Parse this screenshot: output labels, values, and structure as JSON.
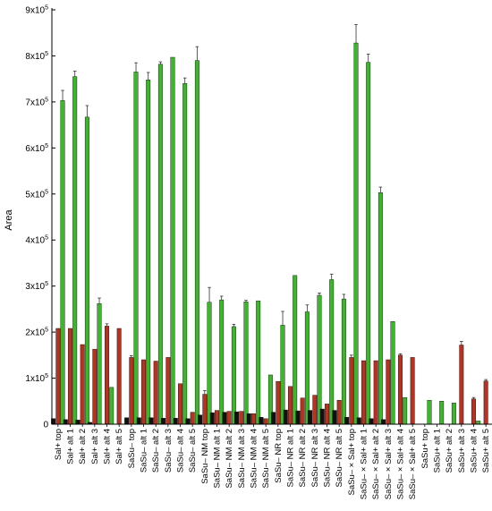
{
  "chart_data": {
    "type": "bar",
    "ylabel": "Area",
    "ylim": [
      0,
      900000
    ],
    "y_ticks": [
      {
        "value": 0,
        "label": "0"
      },
      {
        "value": 100000,
        "label": "1x10",
        "exp": "5"
      },
      {
        "value": 200000,
        "label": "2x10",
        "exp": "5"
      },
      {
        "value": 300000,
        "label": "3x10",
        "exp": "5"
      },
      {
        "value": 400000,
        "label": "4x10",
        "exp": "5"
      },
      {
        "value": 500000,
        "label": "5x10",
        "exp": "5"
      },
      {
        "value": 600000,
        "label": "6x10",
        "exp": "5"
      },
      {
        "value": 700000,
        "label": "7x10",
        "exp": "5"
      },
      {
        "value": 800000,
        "label": "8x10",
        "exp": "5"
      },
      {
        "value": 900000,
        "label": "9x10",
        "exp": "5"
      }
    ],
    "categories": [
      "Sal+ top",
      "Sal+ alt 1",
      "Sal+ alt 2",
      "Sal+ alt 3",
      "Sal+ alt 4",
      "Sal+ alt 5",
      "SaSu– top",
      "SaSu– alt 1",
      "SaSu– alt 2",
      "SaSu– alt 3",
      "SaSu– alt 4",
      "SaSu– alt 5",
      "SaSu– NM top",
      "SaSu– NM alt 1",
      "SaSu– NM alt 2",
      "SaSu– NM alt 3",
      "SaSu– NM alt 4",
      "SaSu– NM alt 5",
      "SaSu– NR top",
      "SaSu– NR alt 1",
      "SaSu– NR alt 2",
      "SaSu– NR alt 3",
      "SaSu– NR alt 4",
      "SaSu– NR alt 5",
      "SaSu– × Sal+ top",
      "SaSu– × Sal+ alt 1",
      "SaSu– × Sal+ alt 2",
      "SaSu– × Sal+ alt 3",
      "SaSu– × Sal+ alt 4",
      "SaSu– × Sal+ alt 5",
      "SaSu+ top",
      "SaSu+ alt 1",
      "SaSu+ alt 2",
      "SaSu+ alt 3",
      "SaSu+ alt 4",
      "SaSu+ alt 5"
    ],
    "series": [
      {
        "color": "#111111",
        "values": [
          12000,
          10000,
          9000,
          4000,
          0,
          0,
          14000,
          14000,
          14000,
          13000,
          13000,
          12000,
          20000,
          25000,
          26000,
          27000,
          23000,
          15000,
          26000,
          31000,
          29000,
          30000,
          33000,
          30000,
          15000,
          14000,
          12000,
          10000,
          0,
          0,
          0,
          0,
          0,
          0,
          0,
          0
        ]
      },
      {
        "color": "#b83222",
        "values": [
          208000,
          208000,
          173000,
          163000,
          213000,
          208000,
          145000,
          140000,
          137000,
          145000,
          88000,
          26000,
          65000,
          30000,
          28000,
          28000,
          23000,
          12000,
          93000,
          82000,
          57000,
          63000,
          44000,
          52000,
          145000,
          138000,
          138000,
          140000,
          150000,
          145000,
          0,
          0,
          0,
          172000,
          55000,
          94000
        ]
      },
      {
        "color": "#3cb62b",
        "values": [
          703000,
          755000,
          667000,
          262000,
          80000,
          0,
          765000,
          748000,
          782000,
          797000,
          740000,
          790000,
          265000,
          270000,
          212000,
          266000,
          268000,
          107000,
          215000,
          323000,
          244000,
          280000,
          314000,
          272000,
          828000,
          786000,
          503000,
          223000,
          58000,
          0,
          52000,
          50000,
          46000,
          0,
          7000,
          0
        ]
      }
    ],
    "error_bars": [
      [
        0,
        0,
        0,
        0,
        0,
        0,
        0,
        0,
        0,
        0,
        0,
        0,
        0,
        0,
        0,
        0,
        0,
        0,
        0,
        0,
        0,
        0,
        0,
        0,
        0,
        0,
        0,
        0,
        0,
        0,
        0,
        0,
        0,
        0,
        0,
        0
      ],
      [
        0,
        0,
        0,
        0,
        5000,
        0,
        4000,
        0,
        0,
        0,
        0,
        0,
        8000,
        0,
        0,
        0,
        0,
        0,
        0,
        0,
        0,
        0,
        0,
        0,
        5000,
        0,
        0,
        0,
        3000,
        0,
        0,
        0,
        0,
        8000,
        3000,
        3000
      ],
      [
        22000,
        12000,
        25000,
        12000,
        0,
        0,
        20000,
        16000,
        5000,
        0,
        12000,
        30000,
        32000,
        8000,
        5000,
        3000,
        0,
        0,
        30000,
        0,
        15000,
        5000,
        12000,
        10000,
        40000,
        18000,
        12000,
        0,
        0,
        0,
        0,
        0,
        0,
        0,
        0,
        0
      ]
    ]
  }
}
